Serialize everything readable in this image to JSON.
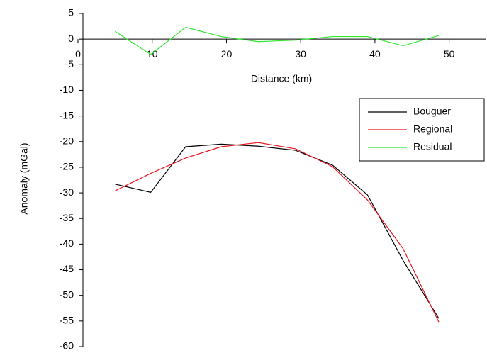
{
  "chart_data": {
    "type": "line",
    "x_label": "Distance (km)",
    "y_label": "Anomaly (mGal)",
    "x": [
      5,
      9.8,
      14.5,
      19.3,
      24.3,
      29.3,
      34.3,
      39,
      43.8,
      48.6
    ],
    "series": [
      {
        "name": "Bouguer",
        "color": "#000000",
        "values": [
          -28.3,
          -29.9,
          -21,
          -20.5,
          -20.9,
          -21.7,
          -24.6,
          -30.4,
          -43.2,
          -54.5
        ]
      },
      {
        "name": "Regional",
        "color": "#e8141c",
        "values": [
          -29.6,
          -26.2,
          -23.2,
          -21,
          -20.2,
          -21.4,
          -24.9,
          -31.4,
          -40.9,
          -55.2
        ]
      },
      {
        "name": "Residual",
        "color": "#2ee82e",
        "values": [
          1.5,
          -3,
          2.3,
          0.5,
          -0.5,
          -0.2,
          0.5,
          0.5,
          -1.3,
          0.7
        ]
      }
    ],
    "xlim": [
      0,
      55
    ],
    "xticks": [
      0,
      10,
      20,
      30,
      40,
      50
    ],
    "ylim": [
      -60,
      5
    ],
    "yticks": [
      -60,
      -55,
      -50,
      -45,
      -40,
      -35,
      -30,
      -25,
      -20,
      -15,
      -10,
      -5,
      0,
      5
    ],
    "legend": "upper right"
  }
}
